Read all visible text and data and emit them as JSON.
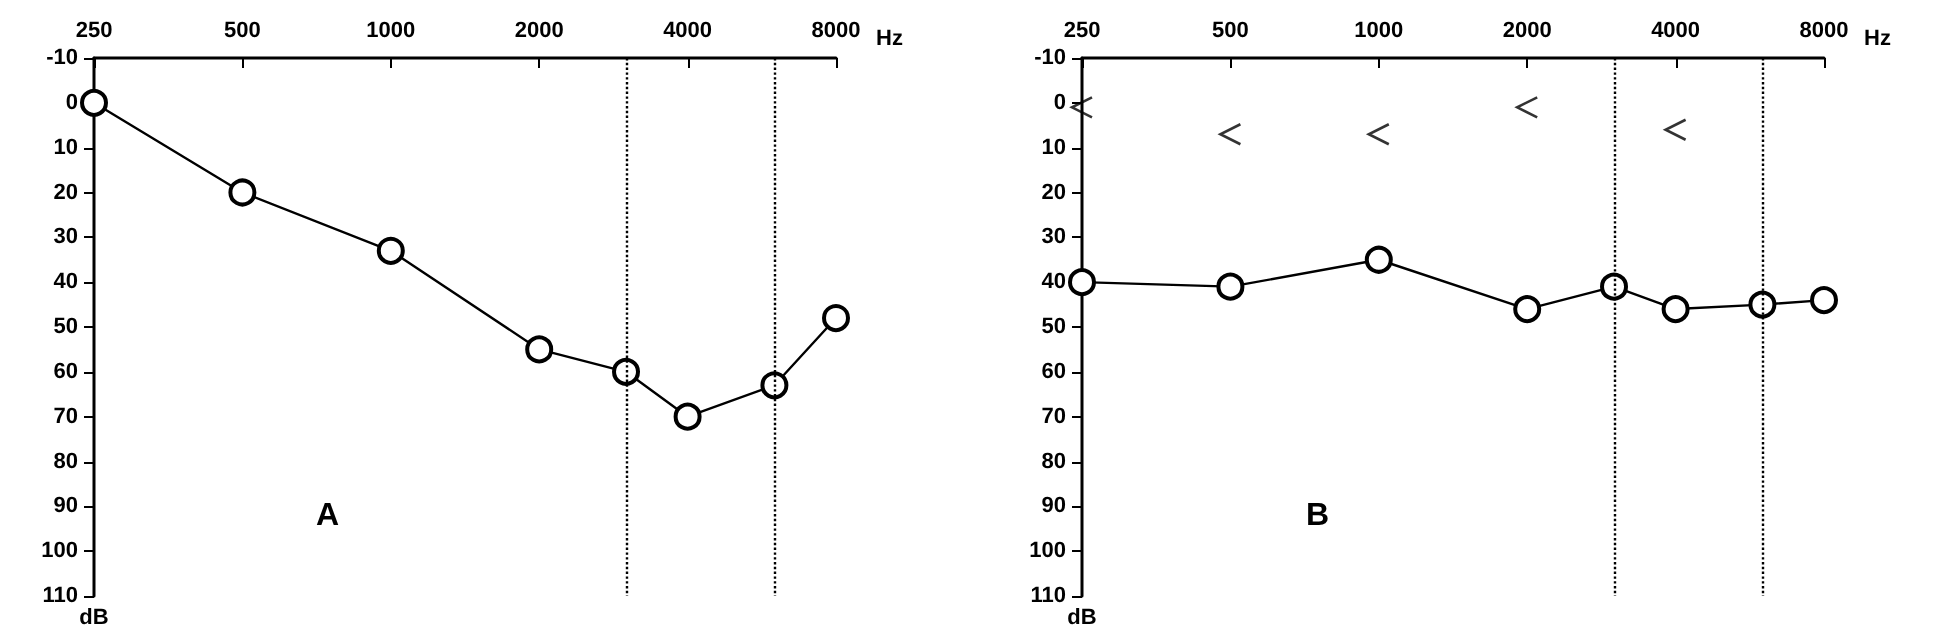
{
  "chart_data": [
    {
      "type": "line",
      "xlabel": "Hz",
      "ylabel": "dB",
      "annotations": [
        "A"
      ],
      "xlim": [
        250,
        8000
      ],
      "ylim": [
        110,
        -10
      ],
      "log": "x",
      "xticks": [
        250,
        500,
        1000,
        2000,
        4000,
        8000
      ],
      "yticks": [
        -10,
        0,
        10,
        20,
        30,
        40,
        50,
        60,
        70,
        80,
        90,
        100,
        110
      ],
      "marker": "circle",
      "line_style": "solid",
      "series": [
        {
          "color": "#000000",
          "x": [
            250,
            500,
            1000,
            2000,
            3000,
            4000,
            6000,
            8000
          ],
          "values": [
            0,
            20,
            33,
            55,
            60,
            70,
            63,
            48
          ]
        }
      ],
      "ref_lines": [
        {
          "axis": "x",
          "value": 3000,
          "color": "#000000",
          "line_style": "dotted"
        },
        {
          "axis": "x",
          "value": 6000,
          "color": "#000000",
          "line_style": "dotted"
        }
      ]
    },
    {
      "type": "line",
      "xlabel": "Hz",
      "ylabel": "dB",
      "annotations": [
        "B"
      ],
      "xlim": [
        250,
        8000
      ],
      "ylim": [
        110,
        -10
      ],
      "log": "x",
      "xticks": [
        250,
        500,
        1000,
        2000,
        4000,
        8000
      ],
      "yticks": [
        -10,
        0,
        10,
        20,
        30,
        40,
        50,
        60,
        70,
        80,
        90,
        100,
        110
      ],
      "marker": "circle",
      "line_style": "solid",
      "series": [
        {
          "color": "#000000",
          "x": [
            250,
            500,
            1000,
            2000,
            3000,
            4000,
            6000,
            8000
          ],
          "values": [
            40,
            41,
            35,
            46,
            41,
            46,
            45,
            44
          ]
        },
        {
          "type": "scatter",
          "marker": "cross",
          "color": "#000000",
          "x": [
            250,
            500,
            1000,
            2000,
            4000
          ],
          "values": [
            1,
            7,
            7,
            1,
            6
          ]
        }
      ],
      "ref_lines": [
        {
          "axis": "x",
          "value": 3000,
          "color": "#000000",
          "line_style": "dotted"
        },
        {
          "axis": "x",
          "value": 6000,
          "color": "#000000",
          "line_style": "dotted"
        }
      ]
    }
  ]
}
